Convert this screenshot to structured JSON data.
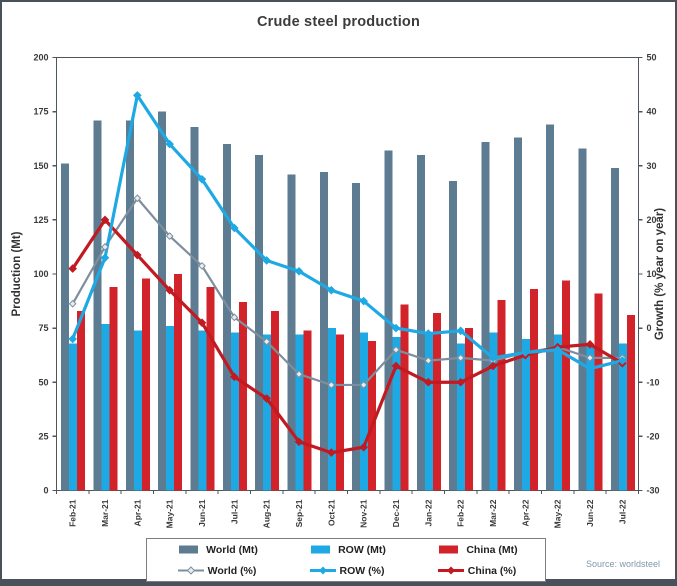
{
  "title": "Crude steel production",
  "source_note": "Source: worldsteel",
  "legend": {
    "bar_labels": [
      "World (Mt)",
      "ROW (Mt)",
      "China (Mt)"
    ],
    "line_labels": [
      "World (%)",
      "ROW (%)",
      "China (%)"
    ]
  },
  "chart_data": {
    "type": "bar",
    "subtype": "combo bar+line, dual axis",
    "title": "Crude steel production",
    "categories": [
      "Feb-21",
      "Mar-21",
      "Apr-21",
      "May-21",
      "Jun-21",
      "Jul-21",
      "Aug-21",
      "Sep-21",
      "Oct-21",
      "Nov-21",
      "Dec-21",
      "Jan-22",
      "Feb-22",
      "Mar-22",
      "Apr-22",
      "May-22",
      "Jun-22",
      "Jul-22"
    ],
    "left_axis": {
      "label": "Production (Mt)",
      "min": 0,
      "max": 200,
      "step": 25
    },
    "right_axis": {
      "label": "Growth (% year on year)",
      "min": -30,
      "max": 50,
      "step": 10
    },
    "grid": "off",
    "legend_position": "bottom",
    "series": [
      {
        "name": "World (Mt)",
        "type": "bar",
        "axis": "left",
        "color": "#5d7b91",
        "values": [
          151,
          171,
          171,
          175,
          168,
          160,
          155,
          146,
          147,
          142,
          157,
          155,
          143,
          161,
          163,
          169,
          158,
          149
        ]
      },
      {
        "name": "ROW (Mt)",
        "type": "bar",
        "axis": "left",
        "color": "#1fa9e4",
        "values": [
          68,
          77,
          74,
          76,
          74,
          73,
          72,
          72,
          75,
          73,
          71,
          73,
          68,
          73,
          70,
          72,
          67,
          68
        ]
      },
      {
        "name": "China (Mt)",
        "type": "bar",
        "axis": "left",
        "color": "#d2232a",
        "values": [
          83,
          94,
          98,
          100,
          94,
          87,
          83,
          74,
          72,
          69,
          86,
          82,
          75,
          88,
          93,
          97,
          91,
          81
        ]
      },
      {
        "name": "World (%)",
        "type": "line",
        "axis": "right",
        "color": "#7d8f9e",
        "marker": "diamond-hollow",
        "marker_fill": "#e8edf1",
        "values": [
          4.5,
          15,
          24,
          17,
          11.5,
          2,
          -2.5,
          -8.5,
          -10.5,
          -10.5,
          -4,
          -6,
          -5.5,
          -6,
          -4.5,
          -3.5,
          -5.5,
          -5.5
        ]
      },
      {
        "name": "ROW (%)",
        "type": "line",
        "axis": "right",
        "color": "#1fa9e4",
        "marker": "diamond",
        "marker_fill": "#1fa9e4",
        "values": [
          -2,
          13,
          43,
          34,
          27.5,
          18.5,
          12.5,
          10.5,
          7,
          5,
          0,
          -1,
          -0.5,
          -5.5,
          -4.5,
          -4,
          -7.5,
          -6
        ]
      },
      {
        "name": "China (%)",
        "type": "line",
        "axis": "right",
        "color": "#c11a20",
        "marker": "diamond",
        "marker_fill": "#c11a20",
        "values": [
          11,
          20,
          13.5,
          7,
          1,
          -9,
          -13,
          -21,
          -23,
          -22,
          -7,
          -10,
          -10,
          -7,
          -5,
          -3.5,
          -3,
          -6.5
        ]
      }
    ]
  }
}
